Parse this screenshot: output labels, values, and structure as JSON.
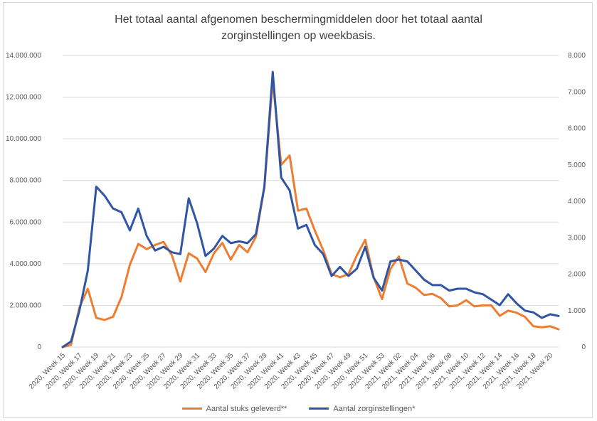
{
  "chart_data": {
    "type": "line",
    "title_line1": "Het totaal aantal afgenomen beschermingmiddelen door het totaal aantal",
    "title_line2": "zorginstellingen op weekbasis.",
    "left_axis": {
      "min": 0,
      "max": 14000000,
      "step": 2000000,
      "tick_labels": [
        "0",
        "2.000.000",
        "4.000.000",
        "6.000.000",
        "8.000.000",
        "10.000.000",
        "12.000.000",
        "14.000.000"
      ]
    },
    "right_axis": {
      "min": 0,
      "max": 8000,
      "step": 1000,
      "tick_labels": [
        "0",
        "1.000",
        "2.000",
        "3.000",
        "4.000",
        "5.000",
        "6.000",
        "7.000",
        "8.000"
      ]
    },
    "x_tick_labels": [
      "2020, Week 15",
      "2020, Week 17",
      "2020, Week 19",
      "2020, Week 21",
      "2020, Week 23",
      "2020, Week 25",
      "2020, Week 27",
      "2020, Week 29",
      "2020, Week 31",
      "2020, Week 33",
      "2020, Week 35",
      "2020, Week 37",
      "2020, Week 39",
      "2020, Week 41",
      "2020, Week 43",
      "2020, Week 45",
      "2020, Week 47",
      "2020, Week 49",
      "2020, Week 51",
      "2020, Week 53",
      "2021, Week 02",
      "2021, Week 04",
      "2021, Week 06",
      "2021, Week 08",
      "2021, Week 10",
      "2021, Week 12",
      "2021, Week 14",
      "2021, Week 16",
      "2021, Week 18",
      "2021, Week 20"
    ],
    "grid": true,
    "legend_position": "bottom",
    "series": [
      {
        "name": "Aantal stuks geleverd**",
        "axis": "left",
        "color": "#ed7d31",
        "values": [
          0,
          100000,
          1900000,
          2800000,
          1400000,
          1300000,
          1450000,
          2400000,
          3950000,
          4950000,
          4700000,
          4900000,
          5050000,
          4400000,
          3150000,
          4500000,
          4250000,
          3600000,
          4500000,
          5000000,
          4200000,
          4900000,
          4550000,
          5300000,
          7650000,
          12800000,
          8750000,
          9200000,
          6550000,
          6650000,
          5600000,
          4650000,
          3500000,
          3350000,
          3500000,
          4400000,
          5150000,
          3350000,
          2300000,
          3750000,
          4350000,
          3050000,
          2850000,
          2500000,
          2550000,
          2350000,
          1950000,
          2000000,
          2250000,
          1950000,
          2000000,
          2000000,
          1500000,
          1750000,
          1650000,
          1450000,
          1000000,
          950000,
          1000000,
          850000
        ]
      },
      {
        "name": "Aantal zorginstellingen*",
        "axis": "right",
        "color": "#2f55a4",
        "values": [
          0,
          150,
          1000,
          2100,
          4400,
          4150,
          3800,
          3700,
          3200,
          3800,
          3050,
          2650,
          2750,
          2600,
          2550,
          4080,
          3400,
          2500,
          2700,
          3050,
          2850,
          2900,
          2850,
          3100,
          4400,
          7550,
          4650,
          4300,
          3250,
          3350,
          2800,
          2550,
          1950,
          2200,
          1950,
          2150,
          2750,
          1900,
          1550,
          2350,
          2400,
          2350,
          2100,
          1850,
          1700,
          1700,
          1550,
          1600,
          1600,
          1500,
          1450,
          1300,
          1150,
          1450,
          1200,
          1000,
          950,
          800,
          900,
          850
        ]
      }
    ]
  }
}
